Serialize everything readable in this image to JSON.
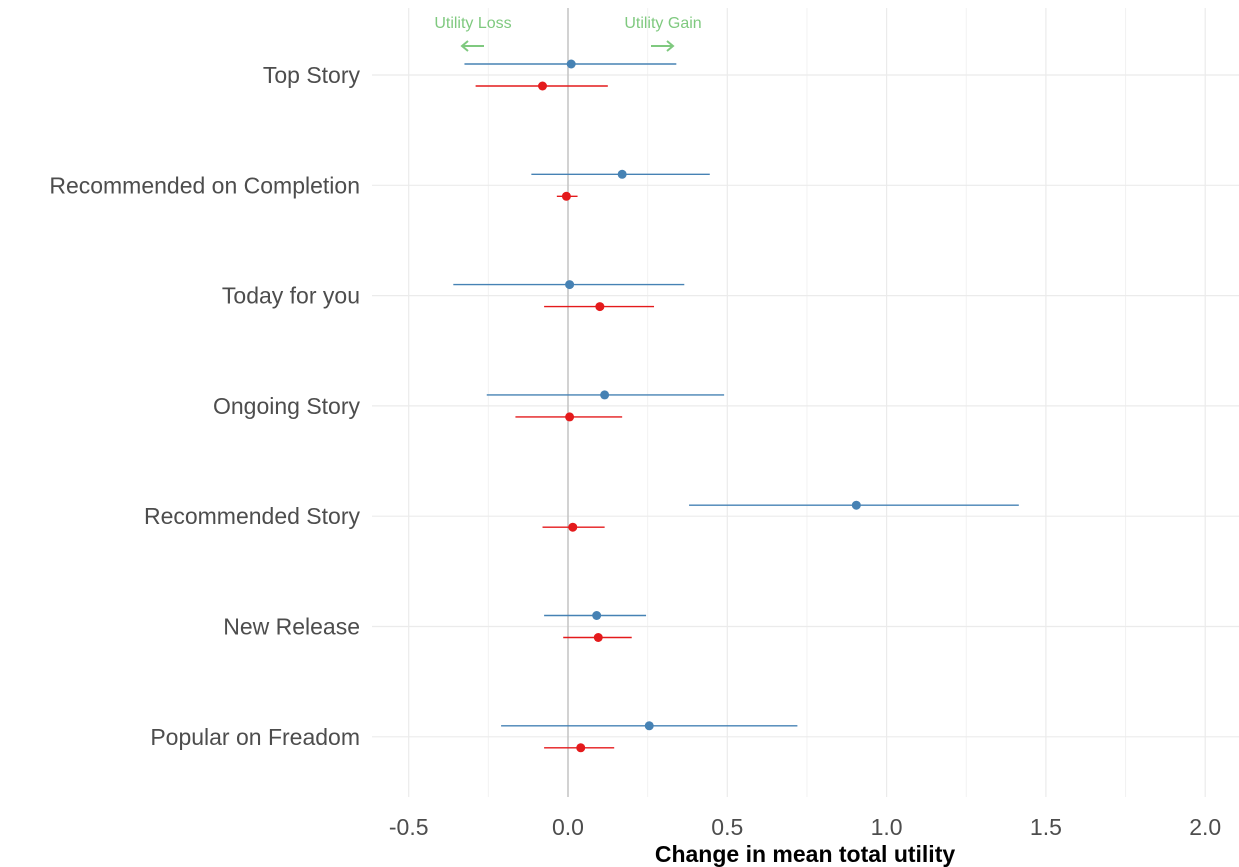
{
  "chart_data": {
    "type": "scatter",
    "title": "",
    "xlabel": "Change in mean total utility",
    "ylabel": "",
    "xlim": [
      -0.63,
      2.11
    ],
    "xticks": [
      -0.5,
      0.0,
      0.5,
      1.0,
      1.5,
      2.0
    ],
    "xtick_labels": [
      "-0.5",
      "0.0",
      "0.5",
      "1.0",
      "1.5",
      "2.0"
    ],
    "grid": true,
    "legend": "none",
    "categories": [
      "Top Story",
      "Recommended on Completion",
      "Today for you",
      "Ongoing Story",
      "Recommended Story",
      "New Release",
      "Popular on Freadom"
    ],
    "series": [
      {
        "color": "#4682b4",
        "estimates": [
          0.01,
          0.17,
          0.005,
          0.115,
          0.905,
          0.09,
          0.255
        ],
        "lower": [
          -0.325,
          -0.115,
          -0.36,
          -0.255,
          0.38,
          -0.075,
          -0.21
        ],
        "upper": [
          0.34,
          0.445,
          0.365,
          0.49,
          1.415,
          0.245,
          0.72
        ]
      },
      {
        "color": "#e41a1c",
        "estimates": [
          -0.08,
          -0.005,
          0.1,
          0.005,
          0.015,
          0.095,
          0.04
        ],
        "lower": [
          -0.29,
          -0.035,
          -0.075,
          -0.165,
          -0.08,
          -0.015,
          -0.075
        ],
        "upper": [
          0.125,
          0.03,
          0.27,
          0.17,
          0.115,
          0.2,
          0.145
        ]
      }
    ],
    "annotations": [
      {
        "text": "Utility Loss",
        "arrow": "left",
        "color": "#7fc97f"
      },
      {
        "text": "Utility Gain",
        "arrow": "right",
        "color": "#7fc97f"
      }
    ]
  }
}
